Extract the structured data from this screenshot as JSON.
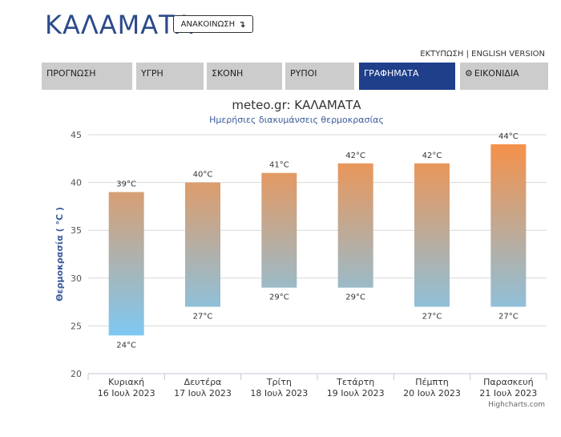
{
  "header": {
    "city": "ΚΑΛΑΜΑΤΑ",
    "announce_label": "ΑΝΑΚΟΙΝΩΣΗ",
    "announce_icon": "arrow-turn-down-icon",
    "print_label": "ΕΚΤΥΠΩΣΗ",
    "separator": "|",
    "english_label": "ENGLISH VERSION"
  },
  "tabs": [
    {
      "label": "ΠΡΟΓΝΩΣΗ"
    },
    {
      "label": "ΥΓΡΗ"
    },
    {
      "label": "ΣΚΟΝΗ"
    },
    {
      "label": "ΡΥΠΟΙ"
    },
    {
      "label": "ΓΡΑΦΗΜΑΤΑ",
      "active": true
    },
    {
      "label": "ΕΙΚΟΝΙΔΙΑ",
      "icon": "gear-icon"
    }
  ],
  "colors": {
    "tab_active": "#1f3f8b",
    "tab_inactive": "#cccccc",
    "bar_top": "#f5914a",
    "bar_bottom": "#7ec8f2",
    "title": "#2c4a8a"
  },
  "chart_data": {
    "type": "bar",
    "subtype": "columnrange",
    "title": "meteo.gr: ΚΑΛΑΜΑΤΑ",
    "subtitle": "Ημερήσιες διακυμάνσεις θερμοκρασίας",
    "ylabel": "Θερμοκρασία ( °C )",
    "ylim": [
      20,
      45
    ],
    "yticks": [
      20,
      25,
      30,
      35,
      40,
      45
    ],
    "unit": "°C",
    "grid": true,
    "credits": "Highcharts.com",
    "categories": [
      {
        "day": "Κυριακή",
        "date": "16 Ιουλ 2023"
      },
      {
        "day": "Δευτέρα",
        "date": "17 Ιουλ 2023"
      },
      {
        "day": "Τρίτη",
        "date": "18 Ιουλ 2023"
      },
      {
        "day": "Τετάρτη",
        "date": "19 Ιουλ 2023"
      },
      {
        "day": "Πέμπτη",
        "date": "20 Ιουλ 2023"
      },
      {
        "day": "Παρασκευή",
        "date": "21 Ιουλ 2023"
      }
    ],
    "series": [
      {
        "low": [
          24,
          27,
          29,
          29,
          27,
          27
        ],
        "high": [
          39,
          40,
          41,
          42,
          42,
          44
        ]
      }
    ]
  }
}
